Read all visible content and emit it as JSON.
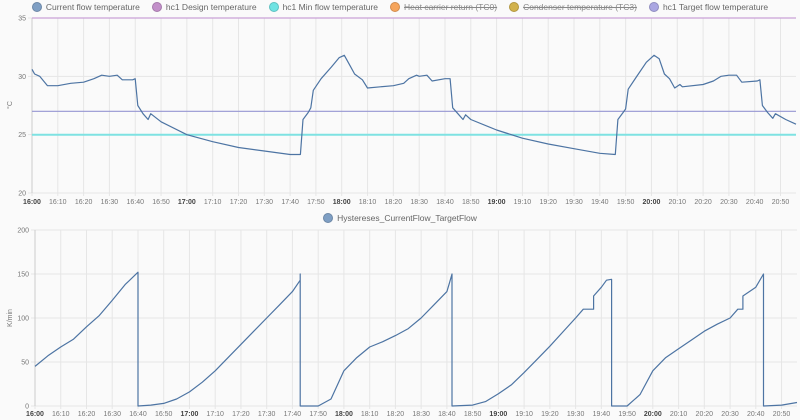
{
  "chart_data": [
    {
      "type": "line",
      "ylabel": "°C",
      "ylim": [
        20,
        35
      ],
      "yticks": [
        "35",
        "30",
        "25",
        "20"
      ],
      "xlim": [
        "16:00",
        "20:56"
      ],
      "xticks": [
        "16:00",
        "16:10",
        "16:20",
        "16:30",
        "16:40",
        "16:50",
        "17:00",
        "17:10",
        "17:20",
        "17:30",
        "17:40",
        "17:50",
        "18:00",
        "18:10",
        "18:20",
        "18:30",
        "18:40",
        "18:50",
        "19:00",
        "19:10",
        "19:20",
        "19:30",
        "19:40",
        "19:50",
        "20:00",
        "20:10",
        "20:20",
        "20:30",
        "20:40",
        "20:50"
      ],
      "grid": true,
      "legend_placement": "top",
      "legend": [
        {
          "name": "Current flow temperature",
          "color": "#7f9fc4",
          "hidden": false
        },
        {
          "name": "hc1 Design temperature",
          "color": "#c28fc9",
          "hidden": false
        },
        {
          "name": "hc1 Min flow temperature",
          "color": "#6fe3e3",
          "hidden": false
        },
        {
          "name": "Heat carrier return (TC0)",
          "color": "#f6a55c",
          "hidden": true
        },
        {
          "name": "Condenser temperature (TC3)",
          "color": "#d2b24c",
          "hidden": true
        },
        {
          "name": "hc1 Target flow temperature",
          "color": "#aaa6e2",
          "hidden": false
        }
      ],
      "series": [
        {
          "name": "Current flow temperature",
          "color": "#4d74a3",
          "points": [
            [
              "16:00",
              30.6
            ],
            [
              "16:01",
              30.2
            ],
            [
              "16:03",
              30.0
            ],
            [
              "16:06",
              29.2
            ],
            [
              "16:10",
              29.2
            ],
            [
              "16:15",
              29.4
            ],
            [
              "16:20",
              29.5
            ],
            [
              "16:24",
              29.8
            ],
            [
              "16:27",
              30.1
            ],
            [
              "16:30",
              30.0
            ],
            [
              "16:33",
              30.1
            ],
            [
              "16:35",
              29.7
            ],
            [
              "16:39",
              29.7
            ],
            [
              "16:40",
              29.8
            ],
            [
              "16:41",
              27.5
            ],
            [
              "16:43",
              26.8
            ],
            [
              "16:45",
              26.3
            ],
            [
              "16:46",
              26.8
            ],
            [
              "16:50",
              26.1
            ],
            [
              "17:00",
              25.0
            ],
            [
              "17:10",
              24.4
            ],
            [
              "17:20",
              23.9
            ],
            [
              "17:30",
              23.6
            ],
            [
              "17:40",
              23.3
            ],
            [
              "17:44",
              23.3
            ],
            [
              "17:45",
              26.3
            ],
            [
              "17:47",
              26.9
            ],
            [
              "17:48",
              27.3
            ],
            [
              "17:49",
              28.8
            ],
            [
              "17:52",
              29.8
            ],
            [
              "17:56",
              30.8
            ],
            [
              "17:59",
              31.6
            ],
            [
              "18:01",
              31.8
            ],
            [
              "18:03",
              31.0
            ],
            [
              "18:05",
              30.2
            ],
            [
              "18:08",
              29.7
            ],
            [
              "18:10",
              29.0
            ],
            [
              "18:15",
              29.1
            ],
            [
              "18:20",
              29.2
            ],
            [
              "18:24",
              29.4
            ],
            [
              "18:26",
              29.8
            ],
            [
              "18:29",
              30.1
            ],
            [
              "18:30",
              30.0
            ],
            [
              "18:33",
              30.1
            ],
            [
              "18:35",
              29.6
            ],
            [
              "18:40",
              29.8
            ],
            [
              "18:42",
              29.8
            ],
            [
              "18:43",
              27.3
            ],
            [
              "18:45",
              26.8
            ],
            [
              "18:47",
              26.3
            ],
            [
              "18:48",
              26.7
            ],
            [
              "18:50",
              26.3
            ],
            [
              "19:00",
              25.4
            ],
            [
              "19:10",
              24.7
            ],
            [
              "19:20",
              24.2
            ],
            [
              "19:30",
              23.8
            ],
            [
              "19:40",
              23.4
            ],
            [
              "19:46",
              23.3
            ],
            [
              "19:47",
              26.3
            ],
            [
              "19:49",
              26.9
            ],
            [
              "19:50",
              27.2
            ],
            [
              "19:51",
              28.9
            ],
            [
              "19:54",
              29.9
            ],
            [
              "19:58",
              31.2
            ],
            [
              "20:01",
              31.8
            ],
            [
              "20:03",
              31.5
            ],
            [
              "20:05",
              30.2
            ],
            [
              "20:07",
              29.8
            ],
            [
              "20:09",
              29.0
            ],
            [
              "20:11",
              29.3
            ],
            [
              "20:12",
              29.1
            ],
            [
              "20:20",
              29.3
            ],
            [
              "20:24",
              29.6
            ],
            [
              "20:27",
              30.0
            ],
            [
              "20:30",
              30.1
            ],
            [
              "20:33",
              30.1
            ],
            [
              "20:35",
              29.5
            ],
            [
              "20:41",
              29.6
            ],
            [
              "20:42",
              29.7
            ],
            [
              "20:43",
              27.5
            ],
            [
              "20:45",
              26.9
            ],
            [
              "20:47",
              26.4
            ],
            [
              "20:48",
              26.8
            ],
            [
              "20:52",
              26.3
            ],
            [
              "20:56",
              25.9
            ]
          ]
        },
        {
          "name": "hc1 Design temperature",
          "color": "#c9a2d8",
          "points": [
            [
              "16:00",
              35
            ],
            [
              "20:56",
              35
            ]
          ]
        },
        {
          "name": "hc1 Min flow temperature",
          "color": "#7ee2e2",
          "points": [
            [
              "16:00",
              25
            ],
            [
              "20:56",
              25
            ]
          ]
        },
        {
          "name": "hc1 Target flow temperature",
          "color": "#9696d2",
          "points": [
            [
              "16:00",
              27
            ],
            [
              "20:56",
              27
            ]
          ]
        }
      ]
    },
    {
      "type": "line",
      "ylabel": "K/min",
      "ylim": [
        0,
        200
      ],
      "yticks": [
        "200",
        "150",
        "100",
        "50",
        "0"
      ],
      "xlim": [
        "16:00",
        "20:56"
      ],
      "xticks": [
        "16:00",
        "16:10",
        "16:20",
        "16:30",
        "16:40",
        "16:50",
        "17:00",
        "17:10",
        "17:20",
        "17:30",
        "17:40",
        "17:50",
        "18:00",
        "18:10",
        "18:20",
        "18:30",
        "18:40",
        "18:50",
        "19:00",
        "19:10",
        "19:20",
        "19:30",
        "19:40",
        "19:50",
        "20:00",
        "20:10",
        "20:20",
        "20:30",
        "20:40",
        "20:50"
      ],
      "grid": true,
      "legend_placement": "top",
      "legend": [
        {
          "name": "Hystereses_CurrentFlow_TargetFlow",
          "color": "#7f9fc4",
          "hidden": false
        }
      ],
      "series": [
        {
          "name": "Hystereses_CurrentFlow_TargetFlow",
          "color": "#4d74a3",
          "points": [
            [
              "16:00",
              45
            ],
            [
              "16:05",
              57
            ],
            [
              "16:10",
              67
            ],
            [
              "16:15",
              76
            ],
            [
              "16:20",
              90
            ],
            [
              "16:25",
              103
            ],
            [
              "16:30",
              120
            ],
            [
              "16:35",
              138
            ],
            [
              "16:40",
              152
            ],
            [
              "16:40",
              0
            ],
            [
              "16:45",
              1
            ],
            [
              "16:50",
              3
            ],
            [
              "16:55",
              8
            ],
            [
              "17:00",
              16
            ],
            [
              "17:05",
              27
            ],
            [
              "17:10",
              40
            ],
            [
              "17:15",
              55
            ],
            [
              "17:20",
              70
            ],
            [
              "17:25",
              85
            ],
            [
              "17:30",
              100
            ],
            [
              "17:35",
              115
            ],
            [
              "17:40",
              130
            ],
            [
              "17:43",
              143
            ],
            [
              "17:43",
              150
            ],
            [
              "17:43",
              0
            ],
            [
              "17:50",
              0
            ],
            [
              "17:55",
              8
            ],
            [
              "18:00",
              40
            ],
            [
              "18:05",
              55
            ],
            [
              "18:10",
              67
            ],
            [
              "18:15",
              73
            ],
            [
              "18:20",
              80
            ],
            [
              "18:25",
              88
            ],
            [
              "18:30",
              100
            ],
            [
              "18:35",
              115
            ],
            [
              "18:40",
              130
            ],
            [
              "18:41",
              140
            ],
            [
              "18:42",
              150
            ],
            [
              "18:42",
              0
            ],
            [
              "18:50",
              1
            ],
            [
              "18:55",
              5
            ],
            [
              "19:00",
              14
            ],
            [
              "19:05",
              24
            ],
            [
              "19:10",
              38
            ],
            [
              "19:15",
              53
            ],
            [
              "19:20",
              68
            ],
            [
              "19:25",
              84
            ],
            [
              "19:30",
              100
            ],
            [
              "19:33",
              110
            ],
            [
              "19:37",
              110
            ],
            [
              "19:37",
              125
            ],
            [
              "19:40",
              135
            ],
            [
              "19:42",
              143
            ],
            [
              "19:44",
              144
            ],
            [
              "19:44",
              0
            ],
            [
              "19:50",
              0
            ],
            [
              "19:55",
              13
            ],
            [
              "20:00",
              40
            ],
            [
              "20:05",
              55
            ],
            [
              "20:10",
              65
            ],
            [
              "20:15",
              75
            ],
            [
              "20:20",
              85
            ],
            [
              "20:25",
              93
            ],
            [
              "20:30",
              100
            ],
            [
              "20:33",
              110
            ],
            [
              "20:35",
              110
            ],
            [
              "20:35",
              125
            ],
            [
              "20:40",
              135
            ],
            [
              "20:43",
              150
            ],
            [
              "20:43",
              0
            ],
            [
              "20:50",
              1
            ],
            [
              "20:56",
              4
            ]
          ]
        }
      ]
    }
  ]
}
